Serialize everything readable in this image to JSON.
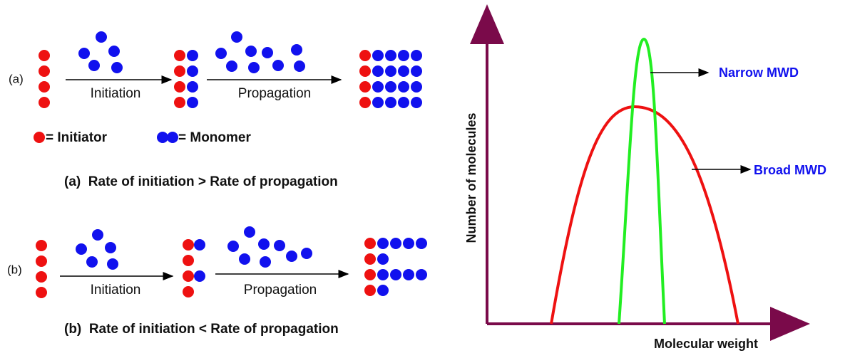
{
  "panel_a": {
    "label": "(a)",
    "step1": "Initiation",
    "step2": "Propagation",
    "caption": "(a)  Rate of initiation > Rate of propagation"
  },
  "legend": {
    "initiator": "= Initiator",
    "monomer": "= Monomer"
  },
  "panel_b": {
    "label": "(b)",
    "step1": "Initiation",
    "step2": "Propagation",
    "caption": "(b)  Rate of initiation < Rate of propagation"
  },
  "plot": {
    "y_label": "Number of molecules",
    "x_label": "Molecular weight",
    "narrow": "Narrow MWD",
    "broad": "Broad MWD"
  }
}
